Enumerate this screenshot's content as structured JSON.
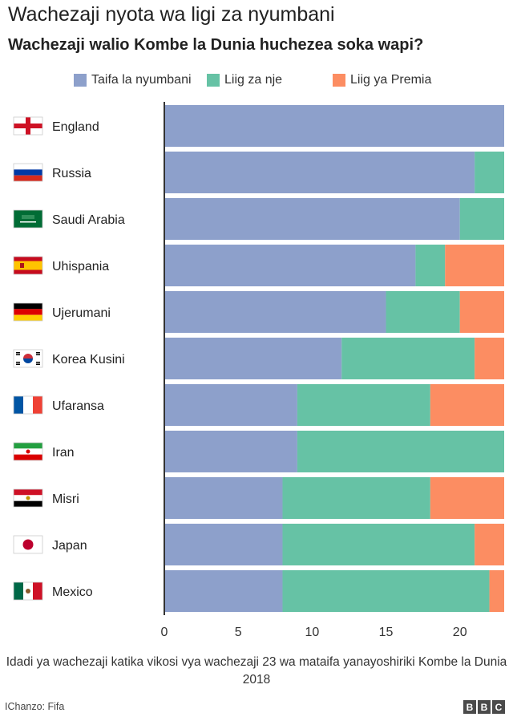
{
  "title": "Wachezaji nyota wa ligi za nyumbani",
  "subtitle": "Wachezaji walio Kombe la Dunia huchezea soka wapi?",
  "legend": [
    {
      "label": "Taifa la nyumbani",
      "color": "#8da0cb"
    },
    {
      "label": "Liig za nje",
      "color": "#66c2a5"
    },
    {
      "label": "Liig ya Premia",
      "color": "#fc8d62"
    }
  ],
  "colors": {
    "home": "#8da0cb",
    "abroad": "#66c2a5",
    "premier": "#fc8d62",
    "axis": "#333333",
    "text": "#222222"
  },
  "chart_data": {
    "type": "bar",
    "orientation": "horizontal",
    "stacked": true,
    "categories": [
      "England",
      "Russia",
      "Saudi Arabia",
      "Uhispania",
      "Ujerumani",
      "Korea Kusini",
      "Ufaransa",
      "Iran",
      "Misri",
      "Japan",
      "Mexico"
    ],
    "flags": [
      "england",
      "russia",
      "saudi",
      "spain",
      "germany",
      "korea",
      "france",
      "iran",
      "egypt",
      "japan",
      "mexico"
    ],
    "series": [
      {
        "name": "Taifa la nyumbani",
        "values": [
          23,
          21,
          20,
          17,
          15,
          12,
          9,
          9,
          8,
          8,
          8
        ]
      },
      {
        "name": "Liig za nje",
        "values": [
          0,
          2,
          3,
          2,
          5,
          9,
          9,
          14,
          10,
          13,
          14
        ]
      },
      {
        "name": "Liig ya Premia",
        "values": [
          0,
          0,
          0,
          4,
          3,
          2,
          5,
          0,
          5,
          2,
          1
        ]
      }
    ],
    "xticks": [
      0,
      5,
      10,
      15,
      20
    ],
    "xlim": [
      0,
      23
    ],
    "xlabel": "Idadi ya wachezaji katika vikosi vya wachezaji 23 wa mataifa yanayoshiriki Kombe la Dunia 2018",
    "legend_position": "top"
  },
  "source": "IChanzo: Fifa",
  "logo": [
    "B",
    "B",
    "C"
  ]
}
